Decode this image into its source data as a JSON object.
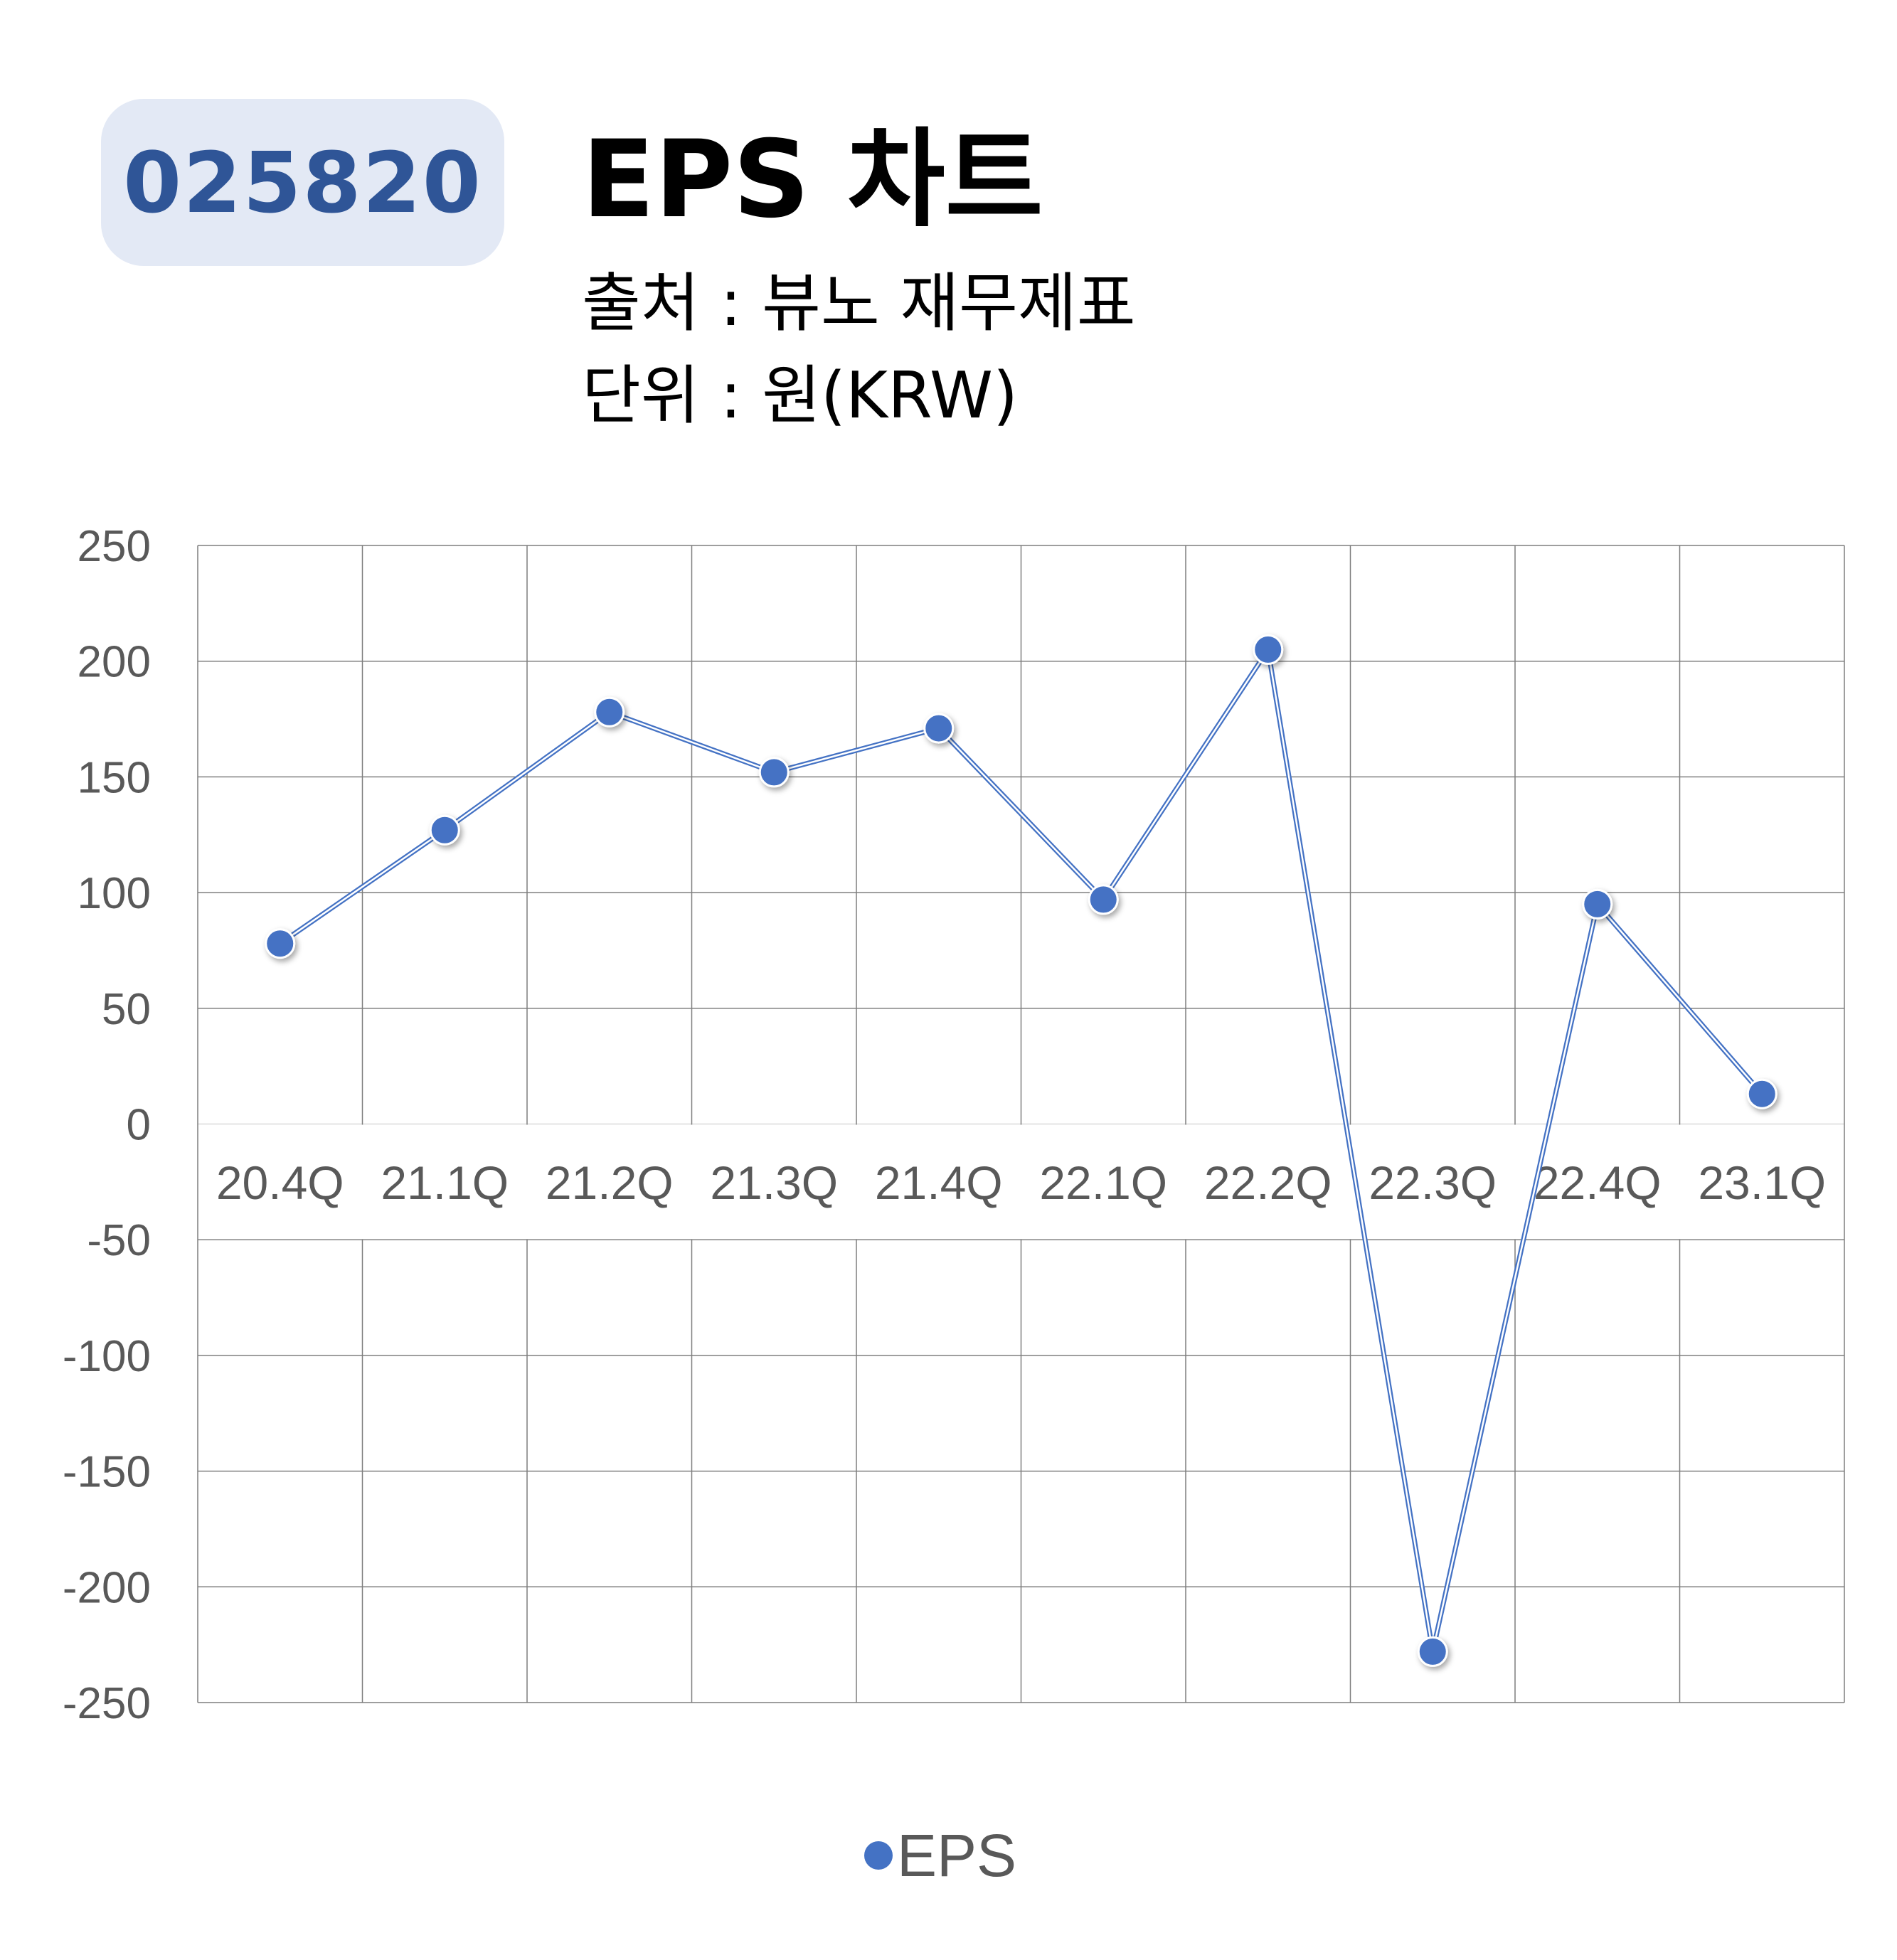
{
  "header": {
    "code": "025820",
    "title": "EPS 차트",
    "source": "출처 : 뷰노 재무제표",
    "unit": "단위 : 원(KRW)"
  },
  "chart_data": {
    "type": "line",
    "categories": [
      "20.4Q",
      "21.1Q",
      "21.2Q",
      "21.3Q",
      "21.4Q",
      "22.1Q",
      "22.2Q",
      "22.3Q",
      "22.4Q",
      "23.1Q"
    ],
    "series": [
      {
        "name": "EPS",
        "values": [
          78,
          127,
          178,
          152,
          171,
          97,
          205,
          -228,
          95,
          13
        ],
        "color": "#4472c4"
      }
    ],
    "ylim": [
      -250,
      250
    ],
    "yticks": [
      250,
      200,
      150,
      100,
      50,
      0,
      -50,
      -100,
      -150,
      -200,
      -250
    ],
    "grid": true,
    "legend_position": "bottom"
  }
}
